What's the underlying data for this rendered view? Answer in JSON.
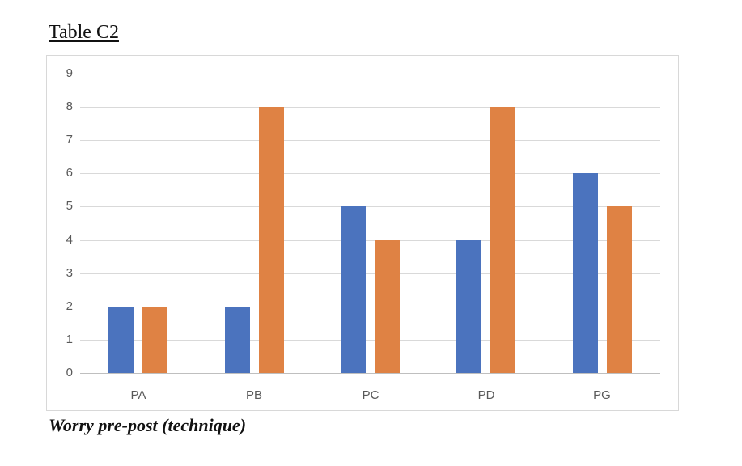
{
  "title": {
    "text": "Table C2"
  },
  "caption": {
    "text": "Worry pre-post (technique)"
  },
  "chart_data": {
    "type": "bar",
    "title": "Table C2",
    "subtitle_caption": "Worry pre-post (technique)",
    "categories": [
      "PA",
      "PB",
      "PC",
      "PD",
      "PG"
    ],
    "series": [
      {
        "color": "#4b73be",
        "values": [
          2,
          2,
          5,
          4,
          6
        ]
      },
      {
        "color": "#df8244",
        "values": [
          2,
          8,
          4,
          8,
          5
        ]
      }
    ],
    "xlabel": "",
    "ylabel": "",
    "ylim": [
      0,
      9
    ],
    "yticks": [
      0,
      1,
      2,
      3,
      4,
      5,
      6,
      7,
      8,
      9
    ],
    "grid": true,
    "legend": false,
    "colors": {
      "gridline": "#d9d9d9",
      "axis_line": "#bfbfbf",
      "tick_label": "#595959",
      "frame_border": "#d8d8d8"
    }
  }
}
